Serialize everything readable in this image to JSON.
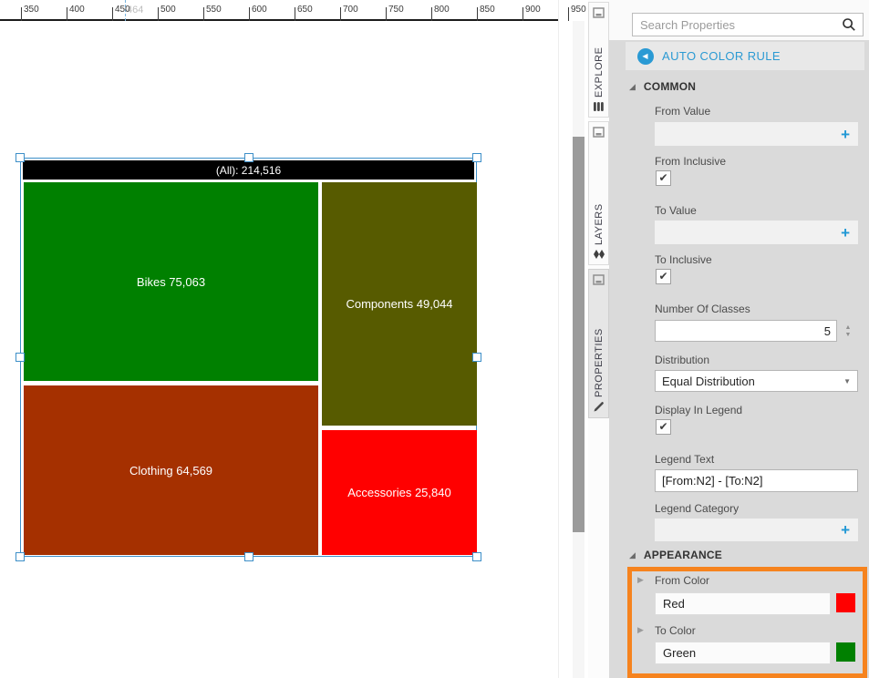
{
  "ruler": {
    "ticks": [
      "350",
      "400",
      "450",
      "500",
      "550",
      "600",
      "650",
      "700",
      "750",
      "800",
      "850",
      "900",
      "950"
    ],
    "marker_label": "464"
  },
  "treemap": {
    "header": "(All): 214,516",
    "total": 214516,
    "tiles": [
      {
        "name": "Bikes",
        "label": "Bikes 75,063",
        "value": 75063,
        "color": "#008000"
      },
      {
        "name": "Components",
        "label": "Components 49,044",
        "value": 49044,
        "color": "#575b00"
      },
      {
        "name": "Clothing",
        "label": "Clothing 64,569",
        "value": 64569,
        "color": "#a53000"
      },
      {
        "name": "Accessories",
        "label": "Accessories 25,840",
        "value": 25840,
        "color": "#ff0000"
      }
    ]
  },
  "side_tabs": [
    {
      "label": "EXPLORE"
    },
    {
      "label": "LAYERS"
    },
    {
      "label": "PROPERTIES",
      "selected": true
    }
  ],
  "panel": {
    "search_placeholder": "Search Properties",
    "breadcrumb": "AUTO COLOR RULE",
    "common": {
      "title": "COMMON",
      "from_value": {
        "label": "From Value"
      },
      "from_inclusive": {
        "label": "From Inclusive",
        "checked": true
      },
      "to_value": {
        "label": "To Value"
      },
      "to_inclusive": {
        "label": "To Inclusive",
        "checked": true
      },
      "number_of_classes": {
        "label": "Number Of Classes",
        "value": "5"
      },
      "distribution": {
        "label": "Distribution",
        "value": "Equal Distribution"
      },
      "display_in_legend": {
        "label": "Display In Legend",
        "checked": true
      },
      "legend_text": {
        "label": "Legend Text",
        "value": "[From:N2] - [To:N2]"
      },
      "legend_category": {
        "label": "Legend Category"
      }
    },
    "appearance": {
      "title": "APPEARANCE",
      "from_color": {
        "label": "From Color",
        "value": "Red",
        "swatch": "#ff0000"
      },
      "to_color": {
        "label": "To Color",
        "value": "Green",
        "swatch": "#008000"
      }
    }
  },
  "icons": {
    "back": "◀",
    "plus": "+",
    "check": "✔",
    "caret_down": "▼",
    "spinner_up": "▲",
    "spinner_down": "▼",
    "expander_expanded": "◢",
    "expander_collapsed": "▶"
  },
  "colors": {
    "accent_blue": "#2a9ad4",
    "highlight_orange": "#f6831e",
    "selection_blue": "#3d8fc8",
    "panel_bg": "#dadada"
  }
}
